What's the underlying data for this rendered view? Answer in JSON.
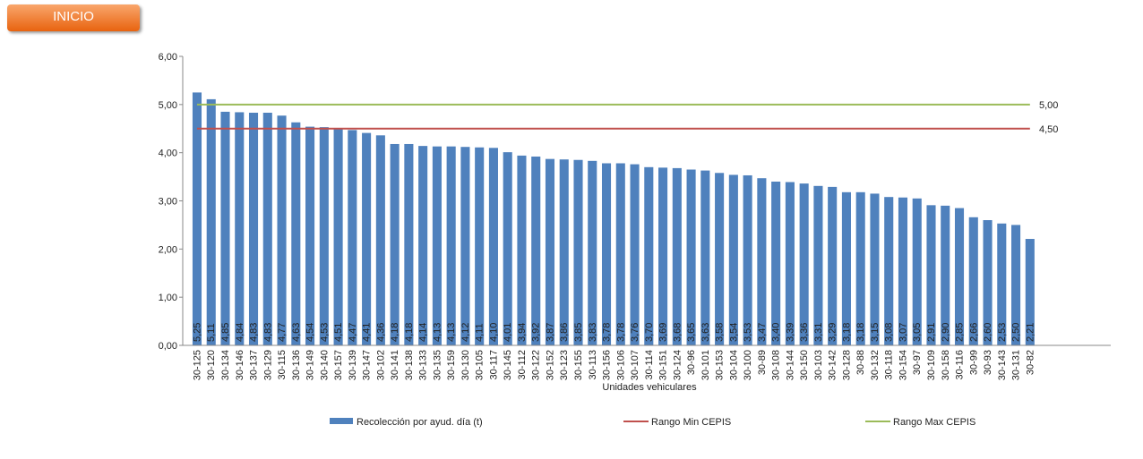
{
  "button": {
    "label": "INICIO"
  },
  "chart_data": {
    "type": "bar",
    "x_label": "Unidades vehiculares",
    "categories": [
      "30-125",
      "30-120",
      "30-134",
      "30-146",
      "30-137",
      "30-129",
      "30-115",
      "30-136",
      "30-149",
      "30-140",
      "30-157",
      "30-139",
      "30-147",
      "30-102",
      "30-141",
      "30-138",
      "30-133",
      "30-135",
      "30-159",
      "30-130",
      "30-105",
      "30-117",
      "30-145",
      "30-112",
      "30-122",
      "30-152",
      "30-123",
      "30-155",
      "30-113",
      "30-156",
      "30-106",
      "30-107",
      "30-114",
      "30-151",
      "30-124",
      "30-96",
      "30-101",
      "30-153",
      "30-104",
      "30-100",
      "30-89",
      "30-108",
      "30-144",
      "30-150",
      "30-103",
      "30-142",
      "30-128",
      "30-88",
      "30-132",
      "30-118",
      "30-154",
      "30-97",
      "30-109",
      "30-158",
      "30-116",
      "30-99",
      "30-93",
      "30-143",
      "30-131",
      "30-82"
    ],
    "series": [
      {
        "name": "Recolección por ayud. día (t)",
        "color": "#4f81bd",
        "values": [
          5.25,
          5.11,
          4.85,
          4.84,
          4.83,
          4.83,
          4.77,
          4.63,
          4.54,
          4.53,
          4.51,
          4.47,
          4.41,
          4.36,
          4.18,
          4.18,
          4.14,
          4.13,
          4.13,
          4.12,
          4.11,
          4.1,
          4.01,
          3.94,
          3.92,
          3.87,
          3.86,
          3.85,
          3.83,
          3.78,
          3.78,
          3.76,
          3.7,
          3.69,
          3.68,
          3.65,
          3.63,
          3.58,
          3.54,
          3.53,
          3.47,
          3.4,
          3.39,
          3.36,
          3.31,
          3.29,
          3.18,
          3.18,
          3.15,
          3.08,
          3.07,
          3.05,
          2.91,
          2.9,
          2.85,
          2.66,
          2.6,
          2.53,
          2.5,
          2.21
        ],
        "value_labels": [
          "5,25",
          "5,11",
          "4,85",
          "4,84",
          "4,83",
          "4,83",
          "4,77",
          "4,63",
          "4,54",
          "4,53",
          "4,51",
          "4,47",
          "4,41",
          "4,36",
          "4,18",
          "4,18",
          "4,14",
          "4,13",
          "4,13",
          "4,12",
          "4,11",
          "4,10",
          "4,01",
          "3,94",
          "3,92",
          "3,87",
          "3,86",
          "3,85",
          "3,83",
          "3,78",
          "3,78",
          "3,76",
          "3,70",
          "3,69",
          "3,68",
          "3,65",
          "3,63",
          "3,58",
          "3,54",
          "3,53",
          "3,47",
          "3,40",
          "3,39",
          "3,36",
          "3,31",
          "3,29",
          "3,18",
          "3,18",
          "3,15",
          "3,08",
          "3,07",
          "3,05",
          "2,91",
          "2,90",
          "2,85",
          "2,66",
          "2,60",
          "2,53",
          "2,50",
          "2,21"
        ]
      }
    ],
    "reference_lines": [
      {
        "name": "Rango Min CEPIS",
        "color": "#c0504d",
        "value": 4.5,
        "label": "4,50"
      },
      {
        "name": "Rango Max CEPIS",
        "color": "#9bbb59",
        "value": 5.0,
        "label": "5,00"
      }
    ],
    "ylim": [
      0,
      6
    ],
    "yticks": [
      {
        "value": 0,
        "label": "0,00"
      },
      {
        "value": 1,
        "label": "1,00"
      },
      {
        "value": 2,
        "label": "2,00"
      },
      {
        "value": 3,
        "label": "3,00"
      },
      {
        "value": 4,
        "label": "4,00"
      },
      {
        "value": 5,
        "label": "5,00"
      },
      {
        "value": 6,
        "label": "6,00"
      }
    ],
    "legend": "bottom"
  }
}
